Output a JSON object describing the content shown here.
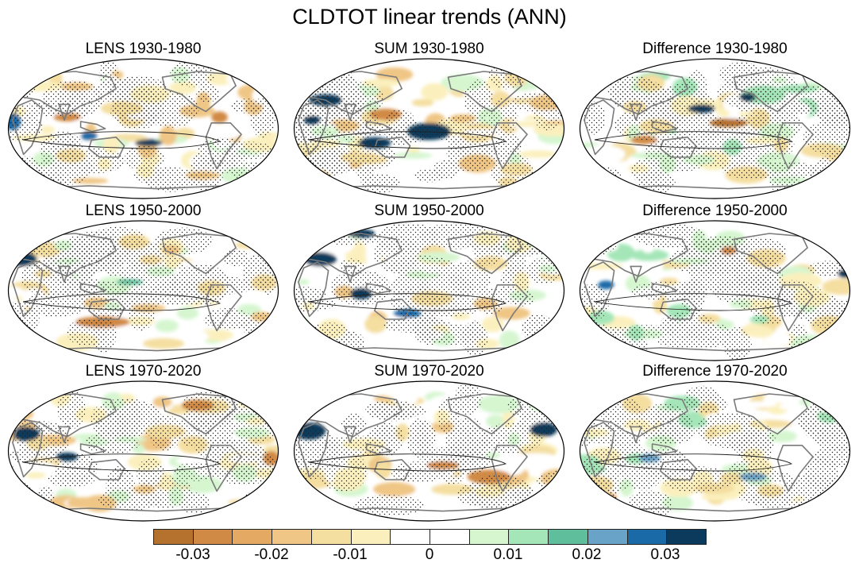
{
  "figure": {
    "title": "CLDTOT linear trends (ANN)"
  },
  "panels": [
    {
      "title": "LENS 1930-1980",
      "variant": 0
    },
    {
      "title": "SUM 1930-1980",
      "variant": 1
    },
    {
      "title": "Difference 1930-1980",
      "variant": 2
    },
    {
      "title": "LENS 1950-2000",
      "variant": 3
    },
    {
      "title": "SUM 1950-2000",
      "variant": 4
    },
    {
      "title": "Difference 1950-2000",
      "variant": 5
    },
    {
      "title": "LENS 1970-2020",
      "variant": 6
    },
    {
      "title": "SUM 1970-2020",
      "variant": 7
    },
    {
      "title": "Difference 1970-2020",
      "variant": 8
    }
  ],
  "colorbar": {
    "colors": [
      "#b5712e",
      "#d18a45",
      "#e4a963",
      "#efc685",
      "#f4dea0",
      "#fbf0bd",
      "#ffffff",
      "#ffffff",
      "#d6f6d0",
      "#a4e6b8",
      "#5fbf9c",
      "#6aa3c8",
      "#1a6aa8",
      "#0b3a5c"
    ],
    "tick_labels": [
      "-0.03",
      "-0.02",
      "-0.01",
      "0",
      "0.01",
      "0.02",
      "0.03"
    ]
  }
}
